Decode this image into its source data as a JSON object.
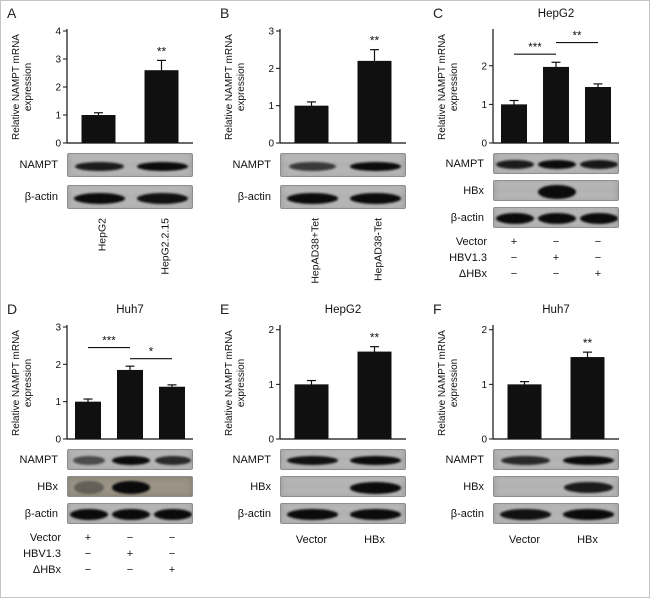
{
  "figure": {
    "ylabel_line1": "Relative NAMPT mRNA",
    "ylabel_line2": "expression",
    "bar_color": "#101010",
    "strip_bg": "#b6b6b6",
    "text_color": "#111111"
  },
  "chart_data": [
    {
      "panel": "A",
      "type": "bar",
      "title": "",
      "ylabel": "Relative NAMPT mRNA expression",
      "categories": [
        "HepG2",
        "HepG2.2.15"
      ],
      "values": [
        1.0,
        2.6
      ],
      "errors": [
        0.08,
        0.35
      ],
      "ylim": [
        0,
        4
      ],
      "yticks": [
        0,
        1,
        2,
        3,
        4
      ],
      "significance": [
        {
          "style": "star",
          "bar": 1,
          "label": "**"
        }
      ]
    },
    {
      "panel": "B",
      "type": "bar",
      "title": "",
      "ylabel": "Relative NAMPT mRNA expression",
      "categories": [
        "HepAD38+Tet",
        "HepAD38-Tet"
      ],
      "values": [
        1.0,
        2.2
      ],
      "errors": [
        0.1,
        0.3
      ],
      "ylim": [
        0,
        3
      ],
      "yticks": [
        0,
        1,
        2,
        3
      ],
      "significance": [
        {
          "style": "star",
          "bar": 1,
          "label": "**"
        }
      ]
    },
    {
      "panel": "C",
      "type": "bar",
      "title": "HepG2",
      "ylabel": "Relative NAMPT mRNA expression",
      "categories": [
        "Vector",
        "HBV1.3",
        "ΔHBx"
      ],
      "values": [
        1.0,
        1.97,
        1.45
      ],
      "errors": [
        0.1,
        0.12,
        0.08
      ],
      "ylim": [
        0,
        2.9
      ],
      "yticks": [
        0,
        1,
        2
      ],
      "significance": [
        {
          "style": "bracket",
          "from": 0,
          "to": 1,
          "label": "***",
          "y": 2.3
        },
        {
          "style": "bracket",
          "from": 1,
          "to": 2,
          "label": "**",
          "y": 2.6
        }
      ]
    },
    {
      "panel": "D",
      "type": "bar",
      "title": "Huh7",
      "ylabel": "Relative NAMPT mRNA expression",
      "categories": [
        "Vector",
        "HBV1.3",
        "ΔHBx"
      ],
      "values": [
        1.0,
        1.85,
        1.4
      ],
      "errors": [
        0.07,
        0.1,
        0.05
      ],
      "ylim": [
        0,
        3
      ],
      "yticks": [
        0,
        1,
        2,
        3
      ],
      "significance": [
        {
          "style": "bracket",
          "from": 0,
          "to": 1,
          "label": "***",
          "y": 2.45
        },
        {
          "style": "bracket",
          "from": 1,
          "to": 2,
          "label": "*",
          "y": 2.15
        }
      ]
    },
    {
      "panel": "E",
      "type": "bar",
      "title": "HepG2",
      "ylabel": "Relative NAMPT mRNA expression",
      "categories": [
        "Vector",
        "HBx"
      ],
      "values": [
        1.0,
        1.6
      ],
      "errors": [
        0.07,
        0.09
      ],
      "ylim": [
        0,
        2.05
      ],
      "yticks": [
        0,
        1,
        2
      ],
      "significance": [
        {
          "style": "star",
          "bar": 1,
          "label": "**"
        }
      ]
    },
    {
      "panel": "F",
      "type": "bar",
      "title": "Huh7",
      "ylabel": "Relative NAMPT mRNA expression",
      "categories": [
        "Vector",
        "HBx"
      ],
      "values": [
        1.0,
        1.5
      ],
      "errors": [
        0.05,
        0.09
      ],
      "ylim": [
        0,
        2.05
      ],
      "yticks": [
        0,
        1,
        2
      ],
      "significance": [
        {
          "style": "star",
          "bar": 1,
          "label": "**"
        }
      ]
    }
  ],
  "panels": [
    {
      "letter": "A",
      "title": "",
      "blots": [
        {
          "label": "NAMPT",
          "bands": [
            0.85,
            1.0
          ]
        },
        {
          "label": "β-actin",
          "bands": [
            1.0,
            0.95
          ]
        }
      ],
      "bottom": {
        "style": "rotated",
        "labels": [
          "HepG2",
          "HepG2.2.15"
        ]
      }
    },
    {
      "letter": "B",
      "title": "",
      "blots": [
        {
          "label": "NAMPT",
          "bands": [
            0.6,
            1.0
          ]
        },
        {
          "label": "β-actin",
          "bands": [
            1.0,
            1.0
          ]
        }
      ],
      "bottom": {
        "style": "rotated",
        "labels": [
          "HepAD38+Tet",
          "HepAD38-Tet"
        ]
      }
    },
    {
      "letter": "C",
      "title": "HepG2",
      "blots": [
        {
          "label": "NAMPT",
          "bands": [
            0.85,
            1.0,
            0.9
          ]
        },
        {
          "label": "HBx",
          "bands": [
            0,
            1.0,
            0
          ],
          "bandH": 14
        },
        {
          "label": "β-actin",
          "bands": [
            1.0,
            1.0,
            1.0
          ]
        }
      ],
      "bottom": {
        "style": "table",
        "rows": [
          {
            "label": "Vector",
            "cells": [
              "+",
              "−",
              "−"
            ]
          },
          {
            "label": "HBV1.3",
            "cells": [
              "−",
              "+",
              "−"
            ]
          },
          {
            "label": "ΔHBx",
            "cells": [
              "−",
              "−",
              "+"
            ]
          }
        ]
      }
    },
    {
      "letter": "D",
      "title": "Huh7",
      "blots": [
        {
          "label": "NAMPT",
          "bands": [
            0.45,
            1.0,
            0.75
          ]
        },
        {
          "label": "HBx",
          "bands": [
            0.12,
            1.0,
            0
          ],
          "bandH": 13,
          "bg": "#9b9486"
        },
        {
          "label": "β-actin",
          "bands": [
            1.0,
            1.0,
            1.0
          ]
        }
      ],
      "bottom": {
        "style": "table",
        "rows": [
          {
            "label": "Vector",
            "cells": [
              "+",
              "−",
              "−"
            ]
          },
          {
            "label": "HBV1.3",
            "cells": [
              "−",
              "+",
              "−"
            ]
          },
          {
            "label": "ΔHBx",
            "cells": [
              "−",
              "−",
              "+"
            ]
          }
        ]
      }
    },
    {
      "letter": "E",
      "title": "HepG2",
      "blots": [
        {
          "label": "NAMPT",
          "bands": [
            0.95,
            1.0
          ]
        },
        {
          "label": "HBx",
          "bands": [
            0,
            1.0
          ],
          "bandH": 12
        },
        {
          "label": "β-actin",
          "bands": [
            1.0,
            1.0
          ]
        }
      ],
      "bottom": {
        "style": "plain",
        "labels": [
          "Vector",
          "HBx"
        ]
      }
    },
    {
      "letter": "F",
      "title": "Huh7",
      "blots": [
        {
          "label": "NAMPT",
          "bands": [
            0.75,
            1.0
          ]
        },
        {
          "label": "HBx",
          "bands": [
            0,
            0.85
          ],
          "bandH": 11
        },
        {
          "label": "β-actin",
          "bands": [
            0.95,
            1.0
          ]
        }
      ],
      "bottom": {
        "style": "plain",
        "labels": [
          "Vector",
          "HBx"
        ]
      }
    }
  ]
}
